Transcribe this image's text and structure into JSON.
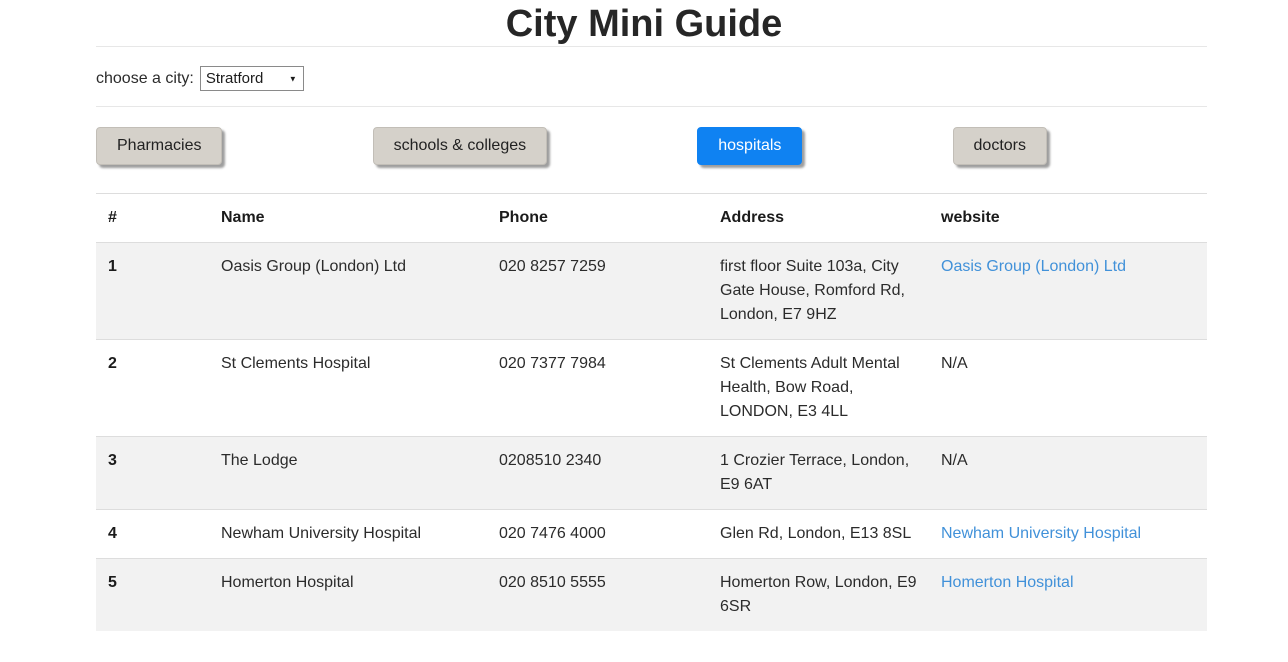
{
  "page": {
    "title": "City Mini Guide"
  },
  "city_chooser": {
    "label": "choose a city:",
    "selected": "Stratford",
    "caret_icon": "▼"
  },
  "category_buttons": [
    {
      "label": "Pharmacies",
      "active": false
    },
    {
      "label": "schools & colleges",
      "active": false
    },
    {
      "label": "hospitals",
      "active": true
    },
    {
      "label": "doctors",
      "active": false
    }
  ],
  "colors": {
    "active_button": "#0f82f2",
    "inactive_button": "#d5d1ca",
    "link": "#4191d9",
    "row_stripe": "#f2f2f2"
  },
  "table": {
    "columns": [
      "#",
      "Name",
      "Phone",
      "Address",
      "website"
    ],
    "rows": [
      {
        "num": "1",
        "name": "Oasis Group (London) Ltd",
        "phone": "020 8257 7259",
        "address": "first floor Suite 103a, City Gate House, Romford Rd, London, E7 9HZ",
        "website": "Oasis Group (London) Ltd",
        "website_is_link": true
      },
      {
        "num": "2",
        "name": "St Clements Hospital",
        "phone": "020 7377 7984",
        "address": "St Clements Adult Mental Health, Bow Road, LONDON, E3 4LL",
        "website": "N/A",
        "website_is_link": false
      },
      {
        "num": "3",
        "name": "The Lodge",
        "phone": "0208510 2340",
        "address": "1 Crozier Terrace, London, E9 6AT",
        "website": "N/A",
        "website_is_link": false
      },
      {
        "num": "4",
        "name": "Newham University Hospital",
        "phone": "020 7476 4000",
        "address": "Glen Rd, London, E13 8SL",
        "website": "Newham University Hospital",
        "website_is_link": true
      },
      {
        "num": "5",
        "name": "Homerton Hospital",
        "phone": "020 8510 5555",
        "address": "Homerton Row, London, E9 6SR",
        "website": "Homerton Hospital",
        "website_is_link": true
      }
    ]
  }
}
